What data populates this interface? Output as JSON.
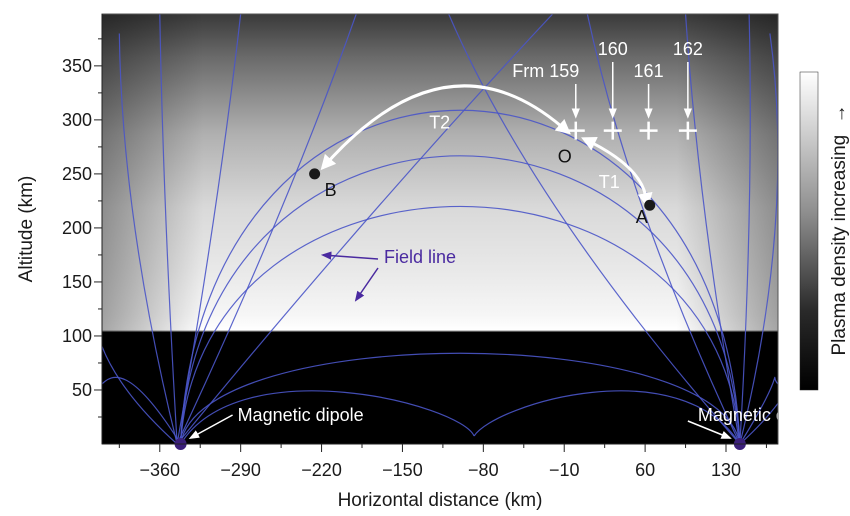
{
  "chart_data": {
    "type": "heatmap",
    "title": "",
    "xlabel": "Horizontal distance (km)",
    "ylabel": "Altitude (km)",
    "xlim": [
      -410,
      175
    ],
    "ylim": [
      0,
      398
    ],
    "xticks": [
      -360,
      -290,
      -220,
      -150,
      -80,
      -10,
      60,
      130
    ],
    "xtick_labels": [
      "−360",
      "−290",
      "−220",
      "−150",
      "−80",
      "−10",
      "60",
      "130"
    ],
    "yticks": [
      50,
      100,
      150,
      200,
      250,
      300,
      350
    ],
    "ytick_labels": [
      "50",
      "100",
      "150",
      "200",
      "250",
      "300",
      "350"
    ],
    "colorbar": {
      "label": "Plasma density increasing",
      "arrow": "→"
    },
    "field_line_color": "#4a55c8",
    "dipoles": [
      {
        "x": -342,
        "y": 0,
        "label": "Magnetic dipole"
      },
      {
        "x": 142,
        "y": 0,
        "label": "Magnetic dipole"
      }
    ],
    "points": [
      {
        "label": "A",
        "x": 64,
        "y": 221
      },
      {
        "label": "B",
        "x": -226,
        "y": 250
      },
      {
        "label": "O",
        "x": 0,
        "y": 290
      }
    ],
    "frames": [
      {
        "label": "Frm 159",
        "x": 0,
        "y": 290
      },
      {
        "label": "160",
        "x": 32,
        "y": 290
      },
      {
        "label": "161",
        "x": 63,
        "y": 290
      },
      {
        "label": "162",
        "x": 97,
        "y": 290
      }
    ],
    "trajectories": [
      {
        "label": "T1",
        "from": "A",
        "to": "O"
      },
      {
        "label": "T2",
        "from": "O",
        "to": "B"
      }
    ],
    "annotations": {
      "field_line": "Field line"
    }
  }
}
